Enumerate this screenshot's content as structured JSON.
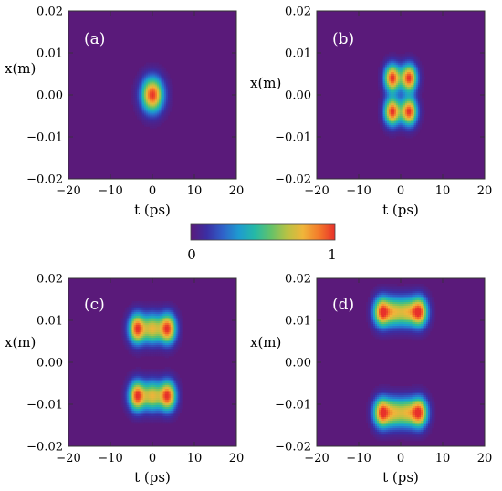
{
  "colormap": [
    "#5a1a7a",
    "#3b2ea3",
    "#2f62c9",
    "#1e9bd0",
    "#25b9a6",
    "#63c26a",
    "#b8c244",
    "#f0b53a",
    "#f47a2a",
    "#e8312a"
  ],
  "colorbar": {
    "min_label": "0",
    "max_label": "1"
  },
  "chart_data": [
    {
      "type": "heatmap",
      "panel_label": "(a)",
      "xlabel": "t (ps)",
      "ylabel": "x(m)",
      "xlim": [
        -20,
        20
      ],
      "ylim": [
        -0.02,
        0.02
      ],
      "xticks": [
        "−20",
        "−10",
        "0",
        "10",
        "20"
      ],
      "yticks": [
        "0.02",
        "0.01",
        "0.00",
        "−0.01",
        "−0.02"
      ],
      "peaks": [
        {
          "t": 0,
          "x": 0.0,
          "amp": 1.0
        }
      ],
      "sigma_t": 1.8,
      "sigma_x": 0.0028
    },
    {
      "type": "heatmap",
      "panel_label": "(b)",
      "xlabel": "t (ps)",
      "ylabel": "x(m)",
      "xlim": [
        -20,
        20
      ],
      "ylim": [
        -0.02,
        0.02
      ],
      "xticks": [
        "−20",
        "−10",
        "0",
        "10",
        "20"
      ],
      "yticks": [
        "0.02",
        "0.01",
        "0.00",
        "−0.01",
        "−0.02"
      ],
      "peaks": [
        {
          "t": -2,
          "x": 0.004,
          "amp": 1.0
        },
        {
          "t": 2,
          "x": 0.004,
          "amp": 1.0
        },
        {
          "t": -2,
          "x": -0.004,
          "amp": 1.0
        },
        {
          "t": 2,
          "x": -0.004,
          "amp": 1.0
        }
      ],
      "sigma_t": 1.3,
      "sigma_x": 0.0022
    },
    {
      "type": "heatmap",
      "panel_label": "(c)",
      "xlabel": "t (ps)",
      "ylabel": "x(m)",
      "xlim": [
        -20,
        20
      ],
      "ylim": [
        -0.02,
        0.02
      ],
      "xticks": [
        "−20",
        "−10",
        "0",
        "10",
        "20"
      ],
      "yticks": [
        "0.02",
        "0.01",
        "0.00",
        "−0.01",
        "−0.02"
      ],
      "peaks": [
        {
          "t": -3.6,
          "x": 0.008,
          "amp": 1.0
        },
        {
          "t": 0,
          "x": 0.008,
          "amp": 0.7
        },
        {
          "t": 3.6,
          "x": 0.008,
          "amp": 1.0
        },
        {
          "t": -3.6,
          "x": -0.008,
          "amp": 1.0
        },
        {
          "t": 0,
          "x": -0.008,
          "amp": 0.7
        },
        {
          "t": 3.6,
          "x": -0.008,
          "amp": 1.0
        }
      ],
      "sigma_t": 1.4,
      "sigma_x": 0.0024
    },
    {
      "type": "heatmap",
      "panel_label": "(d)",
      "xlabel": "t (ps)",
      "ylabel": "x(m)",
      "xlim": [
        -20,
        20
      ],
      "ylim": [
        -0.02,
        0.02
      ],
      "xticks": [
        "−20",
        "−10",
        "0",
        "10",
        "20"
      ],
      "yticks": [
        "0.02",
        "0.01",
        "0.00",
        "−0.01",
        "−0.02"
      ],
      "peaks": [
        {
          "t": -4.4,
          "x": 0.012,
          "amp": 1.0
        },
        {
          "t": -1.4,
          "x": 0.012,
          "amp": 0.6
        },
        {
          "t": 1.4,
          "x": 0.012,
          "amp": 0.6
        },
        {
          "t": 4.4,
          "x": 0.012,
          "amp": 1.0
        },
        {
          "t": -4.4,
          "x": -0.012,
          "amp": 1.0
        },
        {
          "t": -1.4,
          "x": -0.012,
          "amp": 0.6
        },
        {
          "t": 1.4,
          "x": -0.012,
          "amp": 0.6
        },
        {
          "t": 4.4,
          "x": -0.012,
          "amp": 1.0
        }
      ],
      "sigma_t": 1.4,
      "sigma_x": 0.0024
    }
  ]
}
